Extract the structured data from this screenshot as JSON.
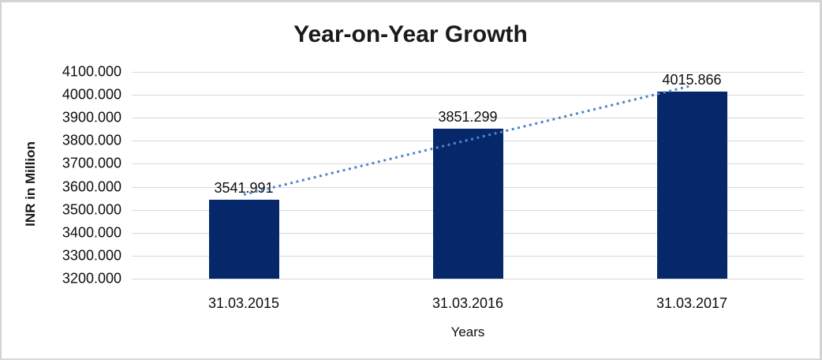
{
  "window": {
    "background": "#ffffff",
    "frame_border_color": "#d4d4d4"
  },
  "chart_data": {
    "type": "bar",
    "title": "Year-on-Year Growth",
    "xlabel": "Years",
    "ylabel": "INR in Million",
    "categories": [
      "31.03.2015",
      "31.03.2016",
      "31.03.2017"
    ],
    "values": [
      3541.991,
      3851.299,
      4015.866
    ],
    "data_labels": [
      "3541.991",
      "3851.299",
      "4015.866"
    ],
    "ylim": [
      3200,
      4100
    ],
    "ytick_step": 100,
    "yticks": [
      "4100.000",
      "4000.000",
      "3900.000",
      "3800.000",
      "3700.000",
      "3600.000",
      "3500.000",
      "3400.000",
      "3300.000",
      "3200.000"
    ],
    "grid": true,
    "legend": "none",
    "bar_color": "#06276a",
    "gridline_color": "#d9d9d9",
    "text_color": "#0d0d0d",
    "trendline": {
      "type": "linear",
      "style": "dotted",
      "color": "#4e86c8",
      "start_value": 3566.1,
      "end_value": 4040.0
    }
  }
}
